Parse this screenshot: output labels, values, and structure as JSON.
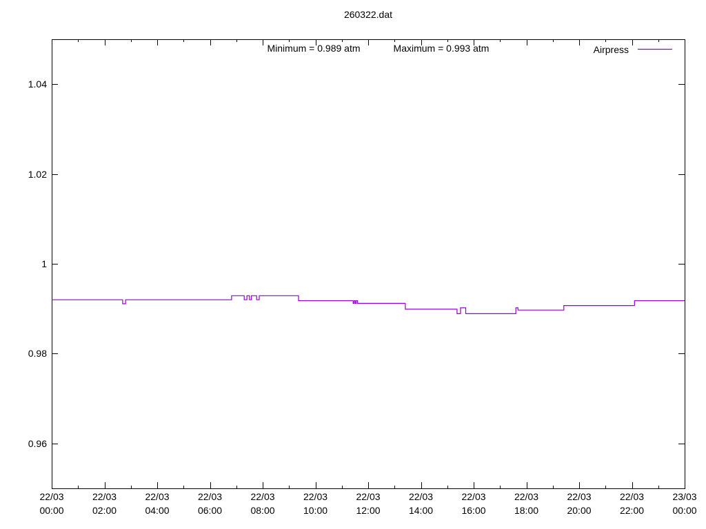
{
  "title": "260322.dat",
  "annotations": {
    "minimum": "Minimum = 0.989 atm",
    "maximum": "Maximum = 0.993 atm"
  },
  "legend": {
    "label": "Airpress",
    "color": "#9400d3"
  },
  "chart_data": {
    "type": "line",
    "title": "260322.dat",
    "xlabel": "",
    "ylabel": "",
    "unit": "atm",
    "grid": false,
    "legend_position": "top-right-inside",
    "xlim_hours": [
      0,
      24
    ],
    "ylim": [
      0.95,
      1.05
    ],
    "x_minor_tick_every_hours": 1,
    "x_ticks": [
      {
        "date": "22/03",
        "time": "00:00",
        "hour": 0
      },
      {
        "date": "22/03",
        "time": "02:00",
        "hour": 2
      },
      {
        "date": "22/03",
        "time": "04:00",
        "hour": 4
      },
      {
        "date": "22/03",
        "time": "06:00",
        "hour": 6
      },
      {
        "date": "22/03",
        "time": "08:00",
        "hour": 8
      },
      {
        "date": "22/03",
        "time": "10:00",
        "hour": 10
      },
      {
        "date": "22/03",
        "time": "12:00",
        "hour": 12
      },
      {
        "date": "22/03",
        "time": "14:00",
        "hour": 14
      },
      {
        "date": "22/03",
        "time": "16:00",
        "hour": 16
      },
      {
        "date": "22/03",
        "time": "18:00",
        "hour": 18
      },
      {
        "date": "22/03",
        "time": "20:00",
        "hour": 20
      },
      {
        "date": "22/03",
        "time": "22:00",
        "hour": 22
      },
      {
        "date": "23/03",
        "time": "00:00",
        "hour": 24
      }
    ],
    "y_ticks": [
      {
        "label": "0.96",
        "value": 0.96
      },
      {
        "label": "0.98",
        "value": 0.98
      },
      {
        "label": "1",
        "value": 1.0
      },
      {
        "label": "1.02",
        "value": 1.02
      },
      {
        "label": "1.04",
        "value": 1.04
      }
    ],
    "series": [
      {
        "name": "Airpress",
        "color": "#9400d3",
        "min": 0.989,
        "max": 0.993,
        "points_hour_value": [
          [
            0.0,
            0.992
          ],
          [
            2.69,
            0.992
          ],
          [
            2.69,
            0.9911
          ],
          [
            2.8,
            0.9911
          ],
          [
            2.8,
            0.992
          ],
          [
            6.82,
            0.992
          ],
          [
            6.82,
            0.9929
          ],
          [
            7.3,
            0.9929
          ],
          [
            7.3,
            0.992
          ],
          [
            7.4,
            0.992
          ],
          [
            7.4,
            0.9929
          ],
          [
            7.5,
            0.9929
          ],
          [
            7.5,
            0.992
          ],
          [
            7.57,
            0.992
          ],
          [
            7.57,
            0.9929
          ],
          [
            7.77,
            0.9929
          ],
          [
            7.77,
            0.992
          ],
          [
            7.87,
            0.992
          ],
          [
            7.87,
            0.9929
          ],
          [
            9.36,
            0.9929
          ],
          [
            9.36,
            0.9918
          ],
          [
            11.43,
            0.9918
          ],
          [
            11.43,
            0.9912
          ],
          [
            11.47,
            0.9912
          ],
          [
            11.47,
            0.9918
          ],
          [
            11.51,
            0.9918
          ],
          [
            11.51,
            0.9912
          ],
          [
            11.55,
            0.9912
          ],
          [
            11.55,
            0.9918
          ],
          [
            11.6,
            0.9918
          ],
          [
            11.6,
            0.9912
          ],
          [
            13.41,
            0.9912
          ],
          [
            13.41,
            0.9899
          ],
          [
            15.37,
            0.9899
          ],
          [
            15.37,
            0.9889
          ],
          [
            15.5,
            0.9889
          ],
          [
            15.5,
            0.9902
          ],
          [
            15.7,
            0.9902
          ],
          [
            15.7,
            0.9889
          ],
          [
            17.6,
            0.9889
          ],
          [
            17.6,
            0.9902
          ],
          [
            17.68,
            0.9902
          ],
          [
            17.68,
            0.9897
          ],
          [
            19.42,
            0.9897
          ],
          [
            19.42,
            0.9907
          ],
          [
            22.1,
            0.9907
          ],
          [
            22.1,
            0.9918
          ],
          [
            24.0,
            0.9918
          ]
        ]
      }
    ]
  }
}
